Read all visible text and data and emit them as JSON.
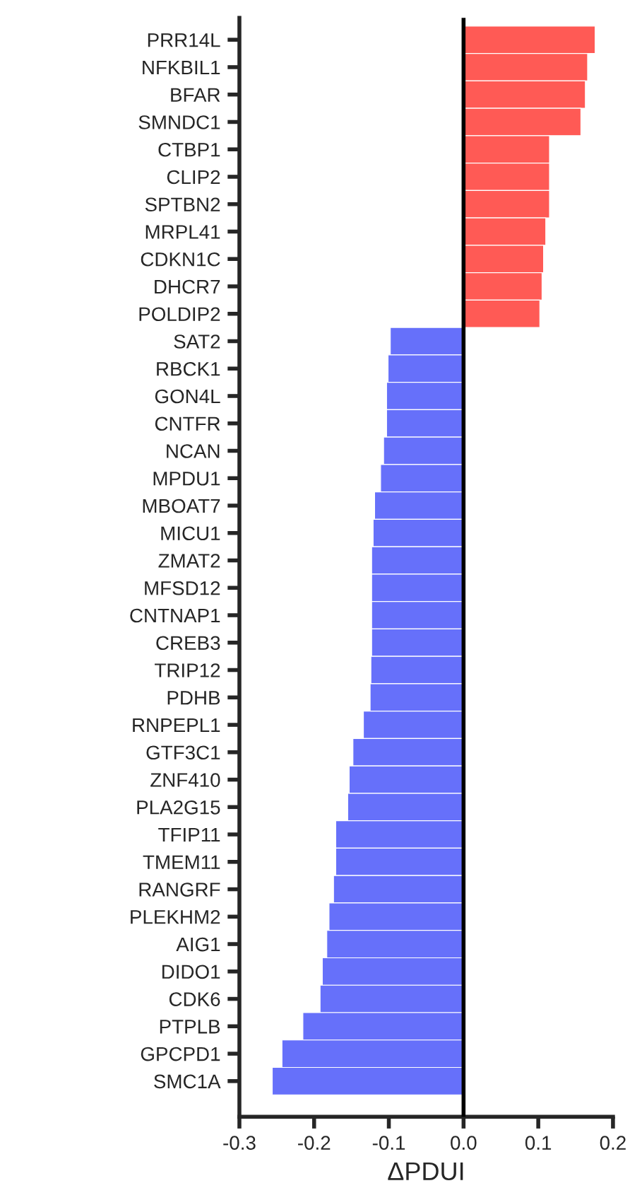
{
  "chart_data": {
    "type": "bar",
    "orientation": "horizontal",
    "xlabel": "ΔPDUI",
    "categories": [
      "PRR14L",
      "NFKBIL1",
      "BFAR",
      "SMNDC1",
      "CTBP1",
      "CLIP2",
      "SPTBN2",
      "MRPL41",
      "CDKN1C",
      "DHCR7",
      "POLDIP2",
      "SAT2",
      "RBCK1",
      "GON4L",
      "CNTFR",
      "NCAN",
      "MPDU1",
      "MBOAT7",
      "MICU1",
      "ZMAT2",
      "MFSD12",
      "CNTNAP1",
      "CREB3",
      "TRIP12",
      "PDHB",
      "RNPEPL1",
      "GTF3C1",
      "ZNF410",
      "PLA2G15",
      "TFIP11",
      "TMEM11",
      "RANGRF",
      "PLEKHM2",
      "AIG1",
      "DIDO1",
      "CDK6",
      "PTPLB",
      "GPCPD1",
      "SMC1A"
    ],
    "values": [
      0.176,
      0.166,
      0.163,
      0.157,
      0.115,
      0.115,
      0.115,
      0.11,
      0.107,
      0.105,
      0.102,
      -0.098,
      -0.101,
      -0.103,
      -0.103,
      -0.107,
      -0.111,
      -0.119,
      -0.121,
      -0.123,
      -0.123,
      -0.123,
      -0.123,
      -0.124,
      -0.125,
      -0.134,
      -0.148,
      -0.153,
      -0.155,
      -0.171,
      -0.171,
      -0.174,
      -0.18,
      -0.183,
      -0.189,
      -0.192,
      -0.215,
      -0.243,
      -0.256
    ],
    "colors": [
      "#ff5a55",
      "#ff5a55",
      "#ff5a55",
      "#ff5a55",
      "#ff5a55",
      "#ff5a55",
      "#ff5a55",
      "#ff5a55",
      "#ff5a55",
      "#ff5a55",
      "#ff5a55",
      "#6670fa",
      "#6670fa",
      "#6670fa",
      "#6670fa",
      "#6670fa",
      "#6670fa",
      "#6670fa",
      "#6670fa",
      "#6670fa",
      "#6670fa",
      "#6670fa",
      "#6670fa",
      "#6670fa",
      "#6670fa",
      "#6670fa",
      "#6670fa",
      "#6670fa",
      "#6670fa",
      "#6670fa",
      "#6670fa",
      "#6670fa",
      "#6670fa",
      "#6670fa",
      "#6670fa",
      "#6670fa",
      "#6670fa",
      "#6670fa",
      "#6670fa"
    ],
    "xlim": [
      -0.3,
      0.2
    ],
    "xticks": [
      -0.3,
      -0.2,
      -0.1,
      {
        "value": 0,
        "label": "0.0"
      },
      0.1,
      0.2
    ],
    "ref_lines": [
      {
        "axis": "x",
        "value": 0,
        "color": "#000000"
      }
    ],
    "grid": false,
    "legend": false
  }
}
